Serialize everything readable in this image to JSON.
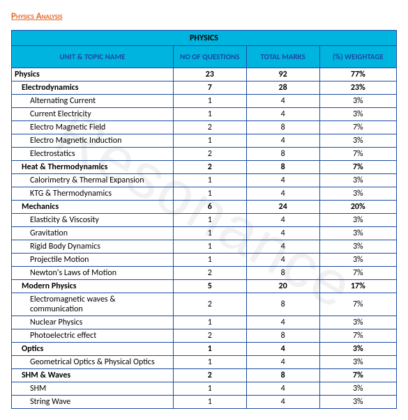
{
  "page_title": "Physics Analysis",
  "table": {
    "title": "PHYSICS",
    "columns": [
      "UNIT & TOPIC NAME",
      "NO OF QUESTIONS",
      "TOTAL MARKS",
      "(%) WEIGHTAGE"
    ],
    "column_widths_pct": [
      42,
      19,
      19,
      20
    ],
    "header_bg": "#00b4e0",
    "header_text_color": "#1a4aa0",
    "border_color": "#1a4aa0",
    "rows": [
      {
        "level": "section",
        "topic": "Physics",
        "noq": "23",
        "marks": "92",
        "wt": "77%"
      },
      {
        "level": "group",
        "topic": "Electrodynamics",
        "noq": "7",
        "marks": "28",
        "wt": "23%"
      },
      {
        "level": "item",
        "topic": "Alternating Current",
        "noq": "1",
        "marks": "4",
        "wt": "3%"
      },
      {
        "level": "item",
        "topic": "Current Electricity",
        "noq": "1",
        "marks": "4",
        "wt": "3%"
      },
      {
        "level": "item",
        "topic": "Electro Magnetic Field",
        "noq": "2",
        "marks": "8",
        "wt": "7%"
      },
      {
        "level": "item",
        "topic": "Electro Magnetic Induction",
        "noq": "1",
        "marks": "4",
        "wt": "3%"
      },
      {
        "level": "item",
        "topic": "Electrostatics",
        "noq": "2",
        "marks": "8",
        "wt": "7%"
      },
      {
        "level": "group",
        "topic": "Heat & Thermodynamics",
        "noq": "2",
        "marks": "8",
        "wt": "7%"
      },
      {
        "level": "item",
        "topic": "Calorimetry & Thermal Expansion",
        "noq": "1",
        "marks": "4",
        "wt": "3%"
      },
      {
        "level": "item",
        "topic": "KTG & Thermodynamics",
        "noq": "1",
        "marks": "4",
        "wt": "3%"
      },
      {
        "level": "group",
        "topic": "Mechanics",
        "noq": "6",
        "marks": "24",
        "wt": "20%"
      },
      {
        "level": "item",
        "topic": "Elasticity & Viscosity",
        "noq": "1",
        "marks": "4",
        "wt": "3%"
      },
      {
        "level": "item",
        "topic": "Gravitation",
        "noq": "1",
        "marks": "4",
        "wt": "3%"
      },
      {
        "level": "item",
        "topic": "Rigid Body Dynamics",
        "noq": "1",
        "marks": "4",
        "wt": "3%"
      },
      {
        "level": "item",
        "topic": "Projectile Motion",
        "noq": "1",
        "marks": "4",
        "wt": "3%"
      },
      {
        "level": "item",
        "topic": "Newton's Laws of Motion",
        "noq": "2",
        "marks": "8",
        "wt": "7%"
      },
      {
        "level": "group",
        "topic": "Modern Physics",
        "noq": "5",
        "marks": "20",
        "wt": "17%"
      },
      {
        "level": "item",
        "topic": "Electromagnetic waves & communication",
        "noq": "2",
        "marks": "8",
        "wt": "7%"
      },
      {
        "level": "item",
        "topic": "Nuclear Physics",
        "noq": "1",
        "marks": "4",
        "wt": "3%"
      },
      {
        "level": "item",
        "topic": "Photoelectric effect",
        "noq": "2",
        "marks": "8",
        "wt": "7%"
      },
      {
        "level": "group",
        "topic": "Optics",
        "noq": "1",
        "marks": "4",
        "wt": "3%"
      },
      {
        "level": "item",
        "topic": "Geometrical Optics & Physical Optics",
        "noq": "1",
        "marks": "4",
        "wt": "3%"
      },
      {
        "level": "group",
        "topic": "SHM & Waves",
        "noq": "2",
        "marks": "8",
        "wt": "7%"
      },
      {
        "level": "item",
        "topic": "SHM",
        "noq": "1",
        "marks": "4",
        "wt": "3%"
      },
      {
        "level": "item",
        "topic": "String Wave",
        "noq": "1",
        "marks": "4",
        "wt": "3%"
      }
    ]
  }
}
